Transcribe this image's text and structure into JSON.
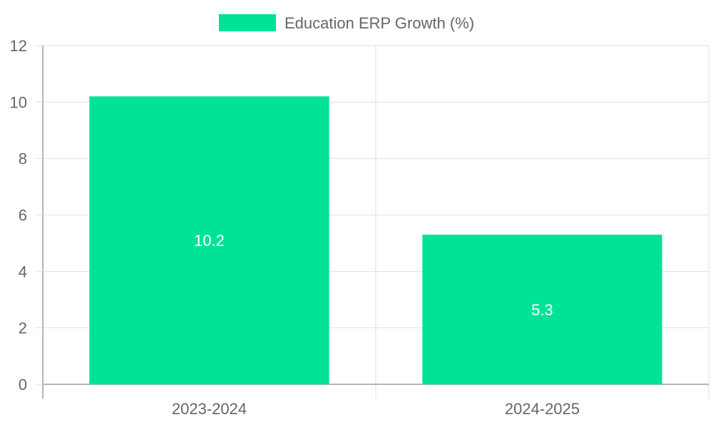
{
  "chart_data": {
    "type": "bar",
    "categories": [
      "2023-2024",
      "2024-2025"
    ],
    "series": [
      {
        "name": "Education ERP Growth (%)",
        "values": [
          10.2,
          5.3
        ],
        "color": "#00e396"
      }
    ],
    "data_labels": [
      "10.2",
      "5.3"
    ],
    "ylim": [
      0,
      12
    ],
    "yticks": [
      0,
      2,
      4,
      6,
      8,
      10,
      12
    ],
    "ytick_labels": [
      "0",
      "2",
      "4",
      "6",
      "8",
      "10",
      "12"
    ],
    "xlabel": "",
    "ylabel": "",
    "grid": true,
    "legend": "top-center"
  },
  "colors": {
    "bar": "#00e396",
    "grid": "#e0e0e0",
    "axis": "#9e9e9e",
    "text": "#666666",
    "data_label": "#ffffff"
  }
}
